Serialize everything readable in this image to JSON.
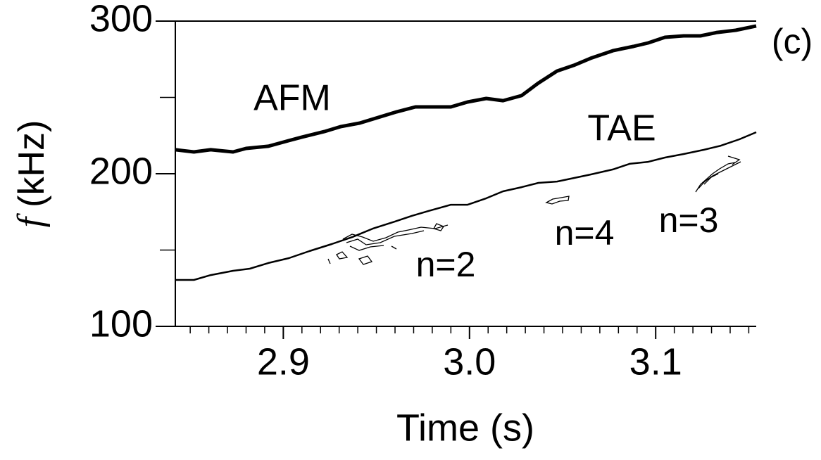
{
  "chart_data": {
    "type": "line",
    "x_label": "Time (s)",
    "y_label_symbol": "f",
    "y_label_unit": "(kHz)",
    "panel_label": "(c)",
    "xlim": [
      2.842,
      3.154
    ],
    "ylim": [
      100,
      300
    ],
    "xticks": [
      2.9,
      {
        "value": 3.0,
        "label": "3.0"
      },
      3.1
    ],
    "xminor": [
      2.85,
      2.86,
      2.87,
      2.88,
      2.89,
      2.91,
      2.92,
      2.93,
      2.94,
      2.95,
      2.96,
      2.97,
      2.98,
      2.99,
      3.01,
      3.02,
      3.03,
      3.04,
      3.05,
      3.06,
      3.07,
      3.08,
      3.09,
      3.11,
      3.12,
      3.13,
      3.14,
      3.15
    ],
    "yticks": [
      100,
      200,
      300
    ],
    "yminor": [
      150,
      250
    ],
    "series": [
      {
        "name": "AFM",
        "color": "#000000",
        "width": 5,
        "x": [
          2.842,
          2.852,
          2.861,
          2.873,
          2.88,
          2.892,
          2.903,
          2.91,
          2.922,
          2.931,
          2.941,
          2.952,
          2.961,
          2.971,
          2.98,
          2.99,
          2.999,
          3.009,
          3.018,
          3.028,
          3.037,
          3.047,
          3.056,
          3.065,
          3.077,
          3.088,
          3.096,
          3.105,
          3.115,
          3.124,
          3.133,
          3.143,
          3.154
        ],
        "values": [
          215.7,
          214.3,
          215.7,
          214.3,
          216.6,
          218,
          221.7,
          224,
          227.6,
          230.9,
          233.2,
          237.3,
          240.6,
          243.8,
          243.8,
          243.8,
          247,
          249.3,
          247.9,
          251.2,
          259.4,
          267.3,
          271,
          275.6,
          280.6,
          283.4,
          285.7,
          289.4,
          290.3,
          290.3,
          292.6,
          294,
          296.8
        ]
      },
      {
        "name": "TAE",
        "color": "#000000",
        "width": 2.5,
        "x": [
          2.842,
          2.852,
          2.861,
          2.873,
          2.882,
          2.892,
          2.903,
          2.914,
          2.926,
          2.937,
          2.948,
          2.96,
          2.969,
          2.978,
          2.99,
          2.999,
          3.009,
          3.018,
          3.028,
          3.037,
          3.047,
          3.056,
          3.065,
          3.077,
          3.086,
          3.096,
          3.105,
          3.115,
          3.126,
          3.135,
          3.145,
          3.154
        ],
        "values": [
          130.4,
          130.4,
          133.6,
          136.4,
          137.8,
          141.5,
          144.7,
          149.3,
          153.9,
          158.5,
          164,
          168.7,
          172.4,
          175.6,
          179.7,
          179.7,
          183.9,
          188.5,
          191.2,
          194,
          194.9,
          197.2,
          199.5,
          202.8,
          206.5,
          207.8,
          210.6,
          212.9,
          215.7,
          218.4,
          222.6,
          227.2
        ]
      }
    ],
    "annotations": [
      "n=2",
      "n=4",
      "n=3"
    ]
  }
}
